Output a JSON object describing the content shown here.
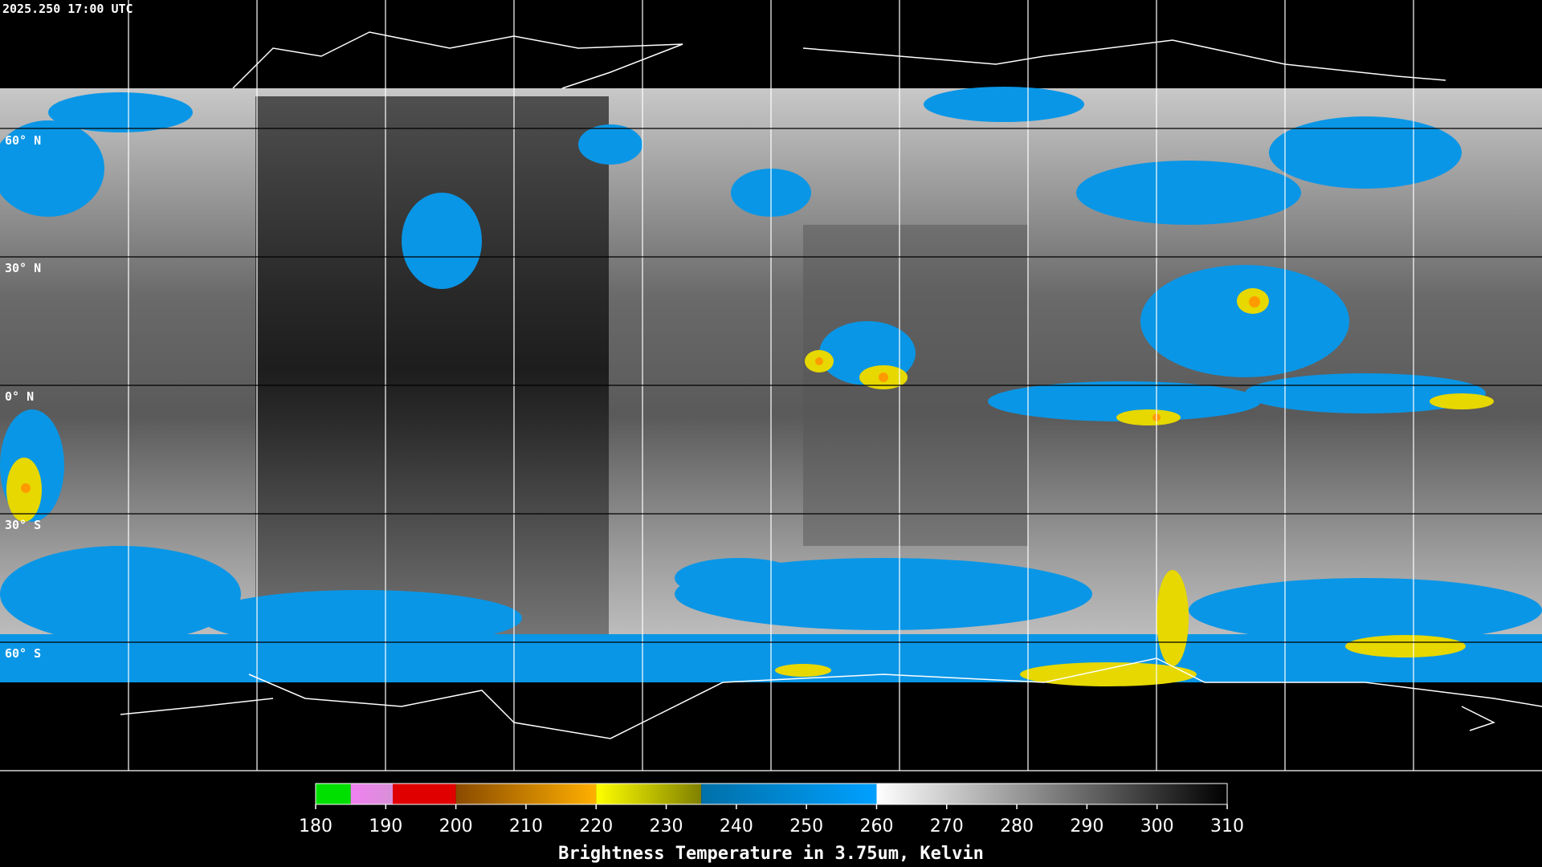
{
  "header": {
    "timestamp": "2025.250 17:00 UTC"
  },
  "map": {
    "lat_labels": [
      "60° N",
      "30° N",
      "0° N",
      "30° S",
      "60° S"
    ]
  },
  "colorbar": {
    "title": "Brightness Temperature in 3.75um, Kelvin",
    "lim": [
      180,
      310
    ],
    "ticks": [
      180,
      190,
      200,
      210,
      220,
      230,
      240,
      250,
      260,
      270,
      280,
      290,
      300,
      310
    ],
    "segments": [
      {
        "from": 180,
        "to": 185,
        "colors": [
          "#00e000",
          "#00e000"
        ]
      },
      {
        "from": 185,
        "to": 191,
        "colors": [
          "#f080f0",
          "#d890d8"
        ]
      },
      {
        "from": 191,
        "to": 200,
        "colors": [
          "#e00000",
          "#e00000"
        ]
      },
      {
        "from": 200,
        "to": 220,
        "colors": [
          "#8a4a00",
          "#ffb000"
        ]
      },
      {
        "from": 220,
        "to": 235,
        "colors": [
          "#ffff00",
          "#808000"
        ]
      },
      {
        "from": 235,
        "to": 260,
        "colors": [
          "#0070a8",
          "#00a0ff"
        ]
      },
      {
        "from": 260,
        "to": 310,
        "colors": [
          "#ffffff",
          "#000000"
        ]
      }
    ]
  }
}
